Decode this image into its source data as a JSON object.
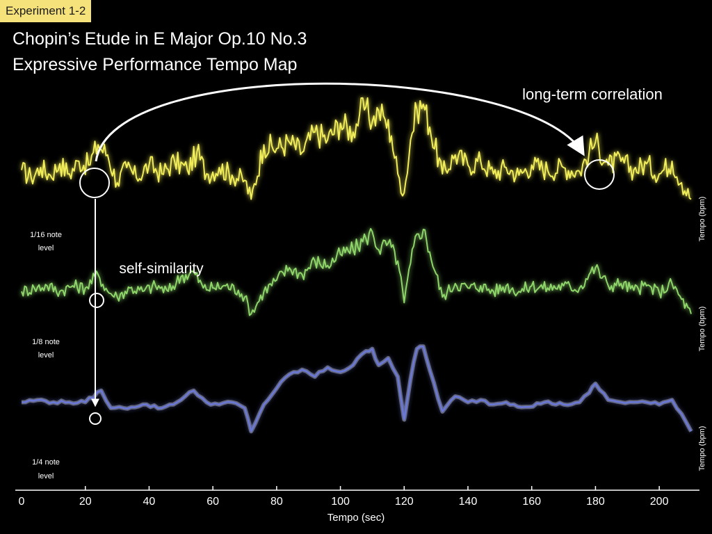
{
  "badge": "Experiment 1-2",
  "title_line1": "Chopin’s Etude in E Major Op.10 No.3",
  "title_line2": "Expressive Performance Tempo Map",
  "annotations": {
    "long_term": "long-term correlation",
    "self_similarity": "self-similarity"
  },
  "colors": {
    "background": "#000000",
    "badge": "#f6e27a",
    "sixteenth": "#f2ee5a",
    "eighth": "#8fd66a",
    "quarter": "#6b78d8",
    "annotation": "#ffffff"
  },
  "chart_data": {
    "type": "line",
    "title": "Expressive Performance Tempo Map",
    "xlabel": "Tempo (sec)",
    "ylabel": "Tempo (bpm)",
    "xlim": [
      0,
      210
    ],
    "xticks": [
      0,
      20,
      40,
      60,
      80,
      100,
      120,
      140,
      160,
      180,
      200
    ],
    "xtick_labels": [
      "0",
      "20",
      "40",
      "60",
      "80",
      "100",
      "120",
      "140",
      "160",
      "180",
      "200"
    ],
    "series": [
      {
        "name": "1/16 note level",
        "label_line1": "1/16 note",
        "label_line2": "level",
        "ylabel": "Tempo (bpm)",
        "color": "#f2ee5a",
        "x": [
          0,
          3,
          6,
          9,
          12,
          15,
          18,
          21,
          24,
          27,
          30,
          33,
          36,
          40,
          44,
          48,
          52,
          55,
          58,
          62,
          66,
          70,
          72,
          76,
          80,
          84,
          88,
          92,
          96,
          100,
          104,
          106,
          108,
          110,
          112,
          114,
          116,
          118,
          120,
          122,
          124,
          126,
          128,
          132,
          136,
          140,
          144,
          148,
          152,
          156,
          160,
          165,
          170,
          175,
          178,
          180,
          184,
          188,
          192,
          196,
          200,
          204,
          207,
          210
        ],
        "y": [
          0.48,
          0.42,
          0.5,
          0.44,
          0.53,
          0.45,
          0.55,
          0.52,
          0.68,
          0.6,
          0.38,
          0.5,
          0.42,
          0.52,
          0.45,
          0.55,
          0.48,
          0.62,
          0.45,
          0.5,
          0.44,
          0.4,
          0.25,
          0.68,
          0.65,
          0.7,
          0.62,
          0.78,
          0.72,
          0.85,
          0.78,
          0.92,
          0.98,
          0.86,
          0.95,
          0.88,
          0.75,
          0.45,
          0.3,
          0.72,
          0.96,
          1.0,
          0.82,
          0.45,
          0.6,
          0.52,
          0.55,
          0.45,
          0.5,
          0.44,
          0.52,
          0.48,
          0.5,
          0.47,
          0.62,
          0.7,
          0.52,
          0.55,
          0.48,
          0.53,
          0.45,
          0.55,
          0.38,
          0.25
        ]
      },
      {
        "name": "1/8 note level",
        "label_line1": "1/8 note",
        "label_line2": "level",
        "ylabel": "Tempo (bpm)",
        "color": "#8fd66a",
        "x": [
          0,
          4,
          8,
          12,
          16,
          20,
          24,
          27,
          30,
          34,
          38,
          42,
          46,
          50,
          54,
          57,
          60,
          64,
          68,
          70,
          72,
          76,
          80,
          84,
          88,
          92,
          96,
          100,
          104,
          108,
          110,
          112,
          115,
          118,
          120,
          122,
          124,
          126,
          128,
          132,
          136,
          140,
          144,
          148,
          152,
          156,
          160,
          165,
          170,
          175,
          178,
          180,
          184,
          188,
          192,
          196,
          200,
          204,
          207,
          210
        ],
        "y": [
          0.45,
          0.48,
          0.5,
          0.45,
          0.5,
          0.48,
          0.6,
          0.45,
          0.4,
          0.48,
          0.45,
          0.5,
          0.45,
          0.58,
          0.62,
          0.48,
          0.48,
          0.5,
          0.46,
          0.4,
          0.25,
          0.45,
          0.55,
          0.66,
          0.6,
          0.72,
          0.68,
          0.78,
          0.82,
          0.92,
          0.98,
          0.82,
          0.88,
          0.72,
          0.35,
          0.7,
          0.96,
          1.0,
          0.8,
          0.4,
          0.52,
          0.48,
          0.5,
          0.45,
          0.5,
          0.45,
          0.5,
          0.48,
          0.5,
          0.48,
          0.6,
          0.66,
          0.5,
          0.52,
          0.46,
          0.5,
          0.44,
          0.52,
          0.38,
          0.25
        ]
      },
      {
        "name": "1/4 note level",
        "label_line1": "1/4 note",
        "label_line2": "level",
        "ylabel": "Tempo (bpm)",
        "color": "#6b78d8",
        "x": [
          0,
          5,
          10,
          15,
          20,
          25,
          28,
          32,
          38,
          44,
          50,
          54,
          58,
          62,
          66,
          70,
          72,
          76,
          80,
          84,
          88,
          92,
          96,
          100,
          104,
          108,
          110,
          112,
          115,
          118,
          120,
          122,
          124,
          126,
          128,
          132,
          136,
          140,
          144,
          148,
          152,
          158,
          164,
          170,
          175,
          178,
          180,
          184,
          188,
          192,
          196,
          200,
          204,
          207,
          210
        ],
        "y": [
          0.5,
          0.52,
          0.5,
          0.5,
          0.5,
          0.6,
          0.45,
          0.45,
          0.48,
          0.45,
          0.52,
          0.6,
          0.5,
          0.48,
          0.5,
          0.45,
          0.25,
          0.48,
          0.62,
          0.74,
          0.78,
          0.72,
          0.8,
          0.76,
          0.82,
          0.94,
          0.96,
          0.82,
          0.88,
          0.72,
          0.35,
          0.7,
          0.96,
          0.98,
          0.78,
          0.42,
          0.55,
          0.5,
          0.52,
          0.48,
          0.5,
          0.46,
          0.5,
          0.48,
          0.5,
          0.58,
          0.66,
          0.52,
          0.5,
          0.5,
          0.5,
          0.48,
          0.52,
          0.4,
          0.25
        ]
      }
    ]
  }
}
